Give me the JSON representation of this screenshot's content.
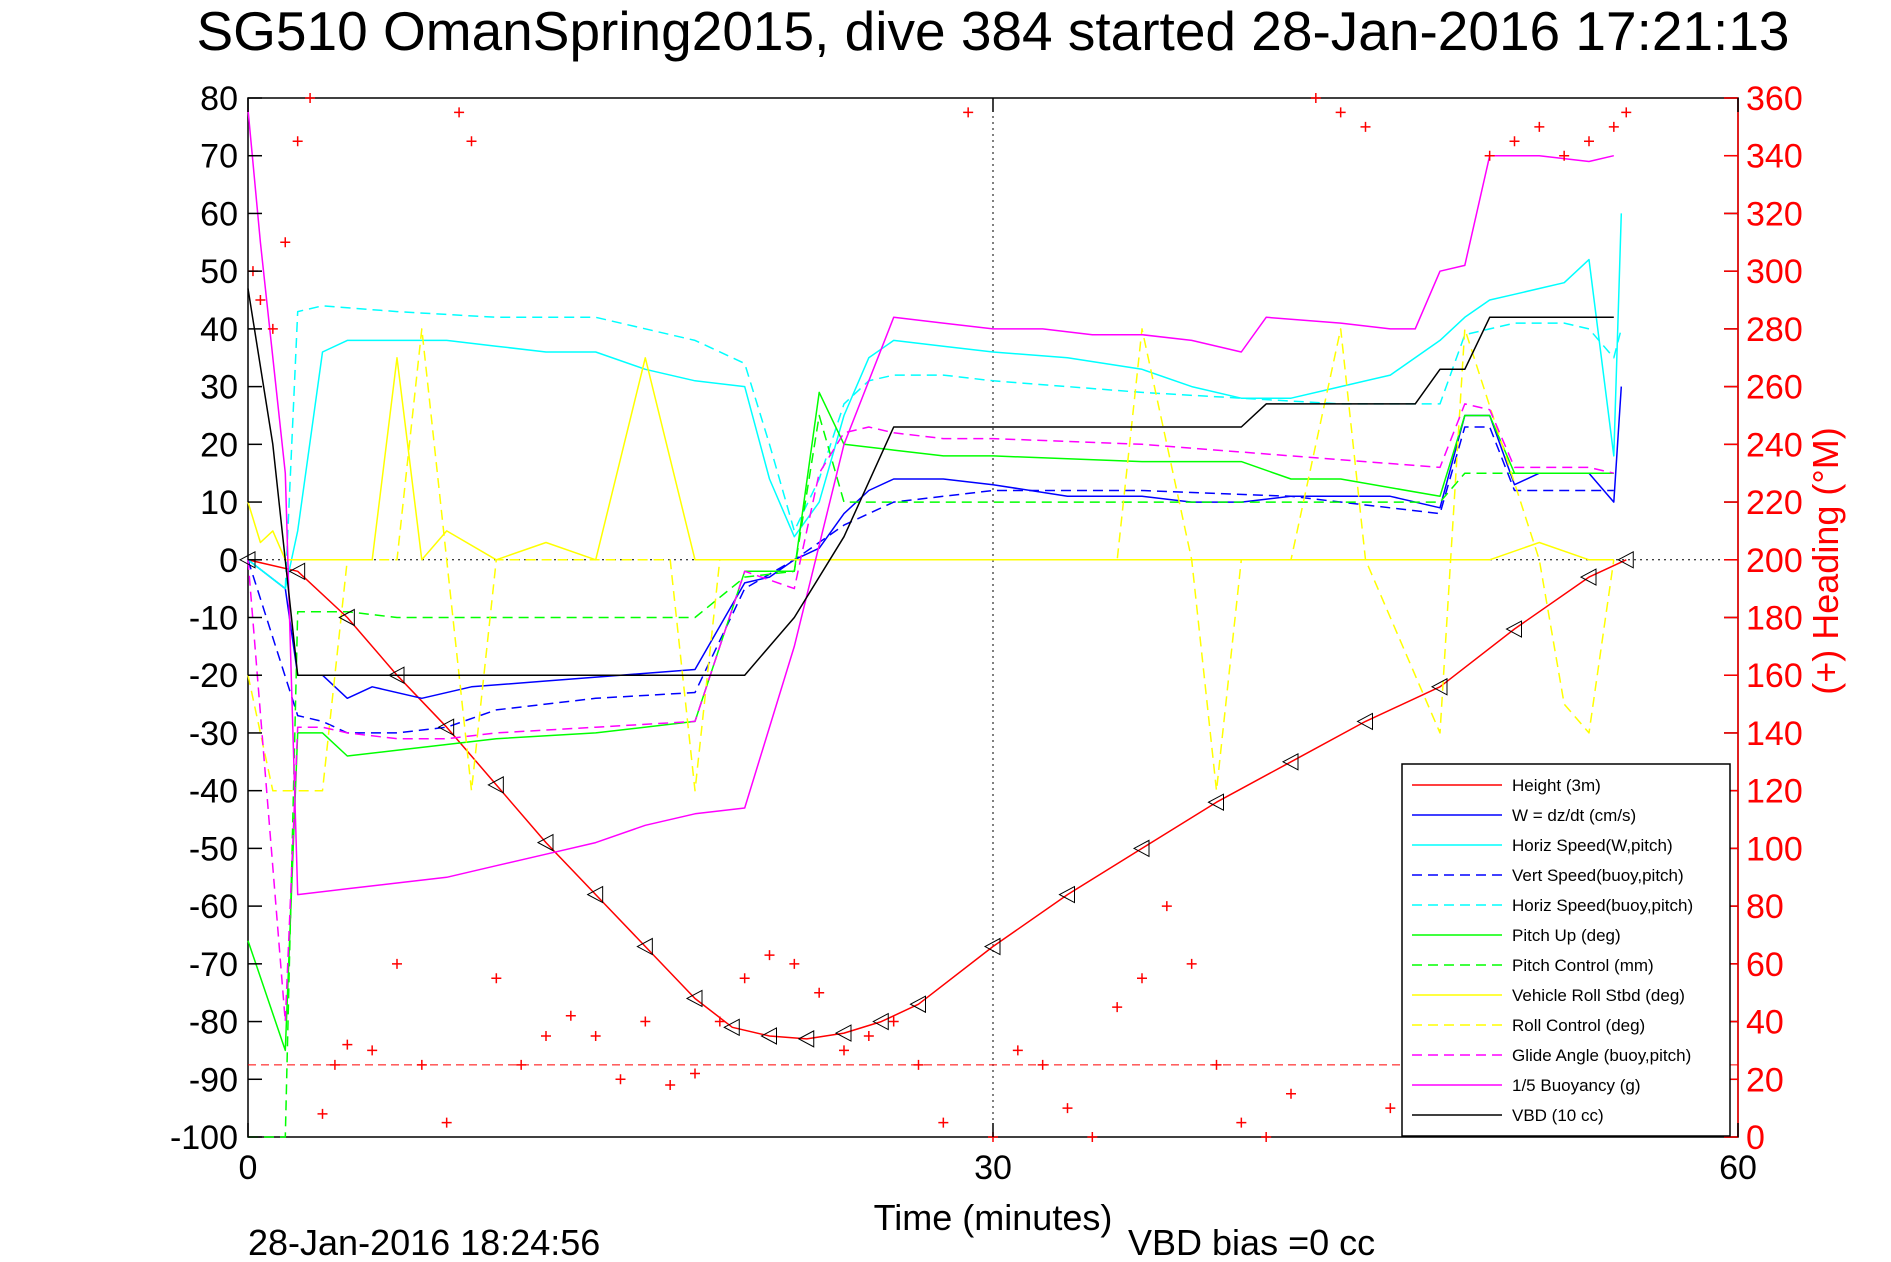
{
  "chart_data": {
    "type": "line",
    "title": "SG510 OmanSpring2015, dive 384 started 28-Jan-2016 17:21:13",
    "xlabel": "Time (minutes)",
    "ylabel": "",
    "y2label": "(+) Heading (°M)",
    "footer_left": "28-Jan-2016 18:24:56",
    "footer_right": "VBD bias =0 cc",
    "xlim": [
      0,
      60
    ],
    "ylim": [
      -100,
      80
    ],
    "y2lim": [
      0,
      360
    ],
    "xticks": [
      "0",
      "30",
      "60"
    ],
    "yticks": [
      "80",
      "70",
      "60",
      "50",
      "40",
      "30",
      "20",
      "10",
      "0",
      "-10",
      "-20",
      "-30",
      "-40",
      "-50",
      "-60",
      "-70",
      "-80",
      "-90",
      "-100"
    ],
    "y2ticks": [
      "360",
      "340",
      "320",
      "300",
      "280",
      "260",
      "240",
      "220",
      "200",
      "180",
      "160",
      "140",
      "120",
      "100",
      "80",
      "60",
      "40",
      "20",
      "0"
    ],
    "grid": "dotted center crosshair",
    "legend_position": "bottom-right",
    "series": [
      {
        "name": "Height (3m)",
        "color": "#ff0000",
        "style": "solid",
        "x": [
          0,
          2,
          4,
          6,
          8,
          10,
          12,
          14,
          16,
          18,
          19.5,
          21,
          22.5,
          24,
          25.5,
          27,
          30,
          33,
          36,
          39,
          42,
          45,
          48,
          51,
          54,
          55.5
        ],
        "y": [
          0,
          -2,
          -10,
          -20,
          -29,
          -39,
          -49,
          -58,
          -67,
          -76,
          -81,
          -82.5,
          -83,
          -82,
          -80,
          -77,
          -67,
          -58,
          -50,
          -42,
          -35,
          -28,
          -22,
          -12,
          -3,
          0
        ]
      },
      {
        "name": "W = dz/dt (cm/s)",
        "color": "#0000ff",
        "style": "solid",
        "x": [
          0,
          1.5,
          2,
          3,
          4,
          5,
          7,
          9,
          12,
          15,
          18,
          20,
          21,
          22,
          23,
          24,
          25,
          26,
          28,
          30,
          33,
          36,
          38,
          40,
          42,
          44,
          46,
          48,
          49,
          50,
          51,
          52,
          53,
          54,
          55,
          55.3
        ],
        "y": [
          0,
          -5,
          -20,
          -20,
          -24,
          -22,
          -24,
          -22,
          -21,
          -20,
          -19,
          -4,
          -3,
          0,
          2,
          8,
          12,
          14,
          14,
          13,
          11,
          11,
          10,
          10,
          11,
          11,
          11,
          9,
          25,
          25,
          13,
          15,
          15,
          15,
          10,
          30
        ]
      },
      {
        "name": "Horiz Speed(W,pitch)",
        "color": "#00ffff",
        "style": "solid",
        "x": [
          0,
          1.5,
          2,
          3,
          4,
          6,
          8,
          10,
          12,
          14,
          16,
          18,
          20,
          21,
          22,
          23,
          24,
          25,
          26,
          28,
          30,
          33,
          36,
          38,
          40,
          42,
          44,
          46,
          48,
          49,
          50,
          51,
          52,
          53,
          54,
          55,
          55.3
        ],
        "y": [
          0,
          -5,
          5,
          36,
          38,
          38,
          38,
          37,
          36,
          36,
          33,
          31,
          30,
          14,
          4,
          10,
          25,
          35,
          38,
          37,
          36,
          35,
          33,
          30,
          28,
          28,
          30,
          32,
          38,
          42,
          45,
          46,
          47,
          48,
          52,
          18,
          60
        ]
      },
      {
        "name": "Vert Speed(buoy,pitch)",
        "color": "#0000ff",
        "style": "dashed",
        "x": [
          0,
          2,
          3,
          4,
          6,
          8,
          10,
          14,
          18,
          20,
          22,
          24,
          26,
          30,
          36,
          42,
          48,
          49,
          50,
          51,
          52,
          54,
          55
        ],
        "y": [
          0,
          -27,
          -28,
          -30,
          -30,
          -29,
          -26,
          -24,
          -23,
          -5,
          0,
          6,
          10,
          12,
          12,
          11,
          8,
          23,
          23,
          12,
          12,
          12,
          12
        ]
      },
      {
        "name": "Horiz Speed(buoy,pitch)",
        "color": "#00ffff",
        "style": "dashed",
        "x": [
          0,
          1.5,
          2,
          3,
          6,
          10,
          14,
          18,
          20,
          21,
          22,
          23,
          24,
          25,
          26,
          28,
          30,
          33,
          36,
          40,
          44,
          48,
          49,
          50,
          51,
          52,
          53,
          54,
          55,
          55.3
        ],
        "y": [
          0,
          -5,
          43,
          44,
          43,
          42,
          42,
          38,
          34,
          20,
          5,
          14,
          27,
          31,
          32,
          32,
          31,
          30,
          29,
          28,
          27,
          27,
          39,
          40,
          41,
          41,
          41,
          40,
          35,
          40
        ]
      },
      {
        "name": "Pitch Up (deg)",
        "color": "#00ff00",
        "style": "solid",
        "x": [
          0,
          1.5,
          2,
          3,
          4,
          6,
          8,
          10,
          14,
          18,
          20,
          22,
          23,
          24,
          26,
          28,
          30,
          36,
          40,
          42,
          44,
          48,
          49,
          50,
          51,
          52,
          54,
          55
        ],
        "y": [
          -66,
          -85,
          -30,
          -30,
          -34,
          -33,
          -32,
          -31,
          -30,
          -28,
          -2,
          -2,
          29,
          20,
          19,
          18,
          18,
          17,
          17,
          14,
          14,
          11,
          25,
          25,
          15,
          15,
          15,
          15
        ]
      },
      {
        "name": "Pitch Control (mm)",
        "color": "#00ff00",
        "style": "dashed",
        "x": [
          0,
          1.5,
          2,
          4,
          6,
          10,
          18,
          20,
          22,
          23,
          24,
          26,
          30,
          36,
          42,
          48,
          49,
          52,
          55
        ],
        "y": [
          -100,
          -100,
          -9,
          -9,
          -10,
          -10,
          -10,
          -3,
          -2,
          25,
          10,
          10,
          10,
          10,
          10,
          10,
          15,
          15,
          15
        ]
      },
      {
        "name": "Vehicle Roll Stbd (deg)",
        "color": "#ffff00",
        "style": "solid",
        "x": [
          0,
          0.5,
          1,
          1.5,
          2,
          3,
          4,
          5,
          6,
          7,
          8,
          10,
          12,
          14,
          16,
          18,
          20,
          22,
          24,
          26,
          30,
          34,
          36,
          38,
          40,
          42,
          44,
          46,
          48,
          50,
          52,
          54,
          55
        ],
        "y": [
          10,
          3,
          5,
          0,
          0,
          0,
          0,
          0,
          35,
          0,
          5,
          0,
          3,
          0,
          35,
          0,
          0,
          0,
          0,
          0,
          0,
          0,
          0,
          0,
          0,
          0,
          0,
          0,
          0,
          0,
          3,
          0,
          0
        ]
      },
      {
        "name": "Roll Control (deg)",
        "color": "#ffff00",
        "style": "dashed",
        "x": [
          0,
          1,
          2,
          3,
          4,
          6,
          7,
          8,
          9,
          10,
          12,
          14,
          16,
          17,
          18,
          19,
          20,
          22,
          24,
          30,
          35,
          36,
          38,
          39,
          40,
          41,
          42,
          44,
          45,
          48,
          49,
          52,
          53,
          54,
          55
        ],
        "y": [
          -20,
          -40,
          -40,
          -40,
          0,
          0,
          40,
          0,
          -40,
          0,
          0,
          0,
          0,
          0,
          -40,
          0,
          0,
          0,
          0,
          0,
          0,
          40,
          0,
          -40,
          0,
          0,
          0,
          40,
          0,
          -30,
          40,
          0,
          -25,
          -30,
          0
        ]
      },
      {
        "name": "Glide Angle (buoy,pitch)",
        "color": "#ff00ff",
        "style": "dashed",
        "x": [
          0,
          1.5,
          2,
          3,
          4,
          6,
          8,
          10,
          14,
          18,
          20,
          22,
          23,
          24,
          25,
          26,
          28,
          30,
          36,
          42,
          48,
          49,
          50,
          51,
          52,
          54,
          55
        ],
        "y": [
          0,
          -80,
          -29,
          -29,
          -30,
          -31,
          -31,
          -30,
          -29,
          -28,
          -2,
          -5,
          15,
          22,
          23,
          22,
          21,
          21,
          20,
          18,
          16,
          27,
          26,
          16,
          16,
          16,
          15
        ]
      },
      {
        "name": "1/5 Buoyancy (g)",
        "color": "#ff00ff",
        "style": "solid",
        "x": [
          0,
          0.5,
          1.5,
          2,
          4,
          6,
          8,
          10,
          12,
          14,
          16,
          18,
          20,
          22,
          24,
          26,
          28,
          30,
          32,
          34,
          36,
          38,
          40,
          41,
          44,
          46,
          47,
          48,
          49,
          50,
          52,
          54,
          55
        ],
        "y": [
          78,
          55,
          15,
          -58,
          -57,
          -56,
          -55,
          -53,
          -51,
          -49,
          -46,
          -44,
          -43,
          -15,
          20,
          42,
          41,
          40,
          40,
          39,
          39,
          38,
          36,
          42,
          41,
          40,
          40,
          50,
          51,
          70,
          70,
          69,
          70
        ]
      },
      {
        "name": "VBD (10 cc)",
        "color": "#000000",
        "style": "solid",
        "x": [
          0,
          1,
          2,
          4,
          10,
          18,
          20,
          22,
          24,
          26,
          30,
          36,
          40,
          41,
          44,
          47,
          48,
          49,
          50,
          52,
          55
        ],
        "y": [
          47,
          20,
          -20,
          -20,
          -20,
          -20,
          -20,
          -10,
          4,
          23,
          23,
          23,
          23,
          27,
          27,
          27,
          33,
          33,
          42,
          42,
          42
        ]
      }
    ],
    "heading_series": {
      "color": "#ff0000",
      "marker": "+",
      "axis": "right",
      "x": [
        0.2,
        0.5,
        1,
        1.5,
        2,
        2.5,
        3,
        3.5,
        4,
        5,
        6,
        7,
        8,
        8.5,
        9,
        10,
        11,
        12,
        13,
        14,
        15,
        16,
        17,
        18,
        19,
        20,
        21,
        22,
        23,
        24,
        25,
        26,
        27,
        28,
        29,
        30,
        31,
        32,
        33,
        34,
        35,
        36,
        37,
        38,
        39,
        40,
        41,
        42,
        43,
        44,
        45,
        46,
        47,
        48,
        49,
        50,
        51,
        52,
        53,
        54,
        55,
        55.5
      ],
      "y": [
        300,
        290,
        280,
        310,
        345,
        360,
        8,
        25,
        32,
        30,
        60,
        25,
        5,
        355,
        345,
        55,
        25,
        35,
        42,
        35,
        20,
        40,
        18,
        22,
        40,
        55,
        63,
        60,
        50,
        30,
        35,
        40,
        25,
        5,
        355,
        0,
        30,
        25,
        10,
        0,
        45,
        55,
        80,
        60,
        25,
        5,
        0,
        15,
        360,
        355,
        350,
        10,
        40,
        60,
        65,
        340,
        345,
        350,
        340,
        345,
        350,
        355
      ]
    }
  }
}
